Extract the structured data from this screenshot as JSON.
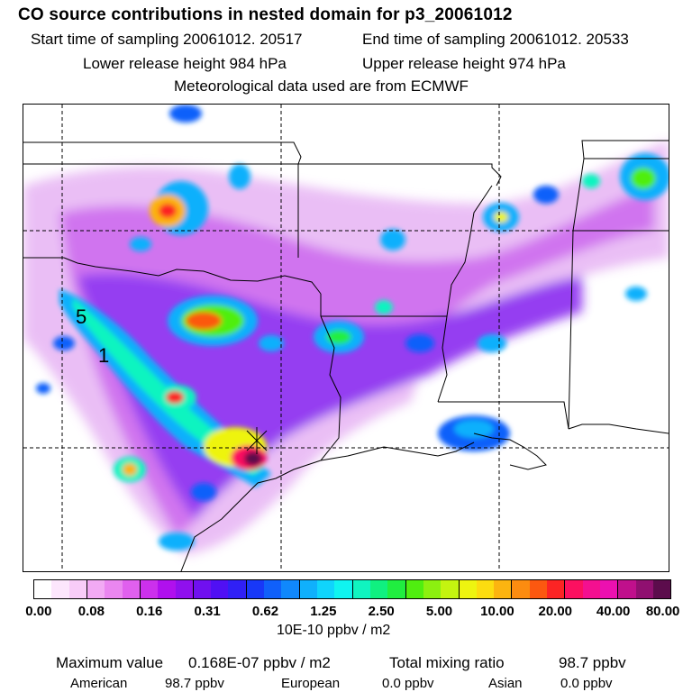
{
  "header": {
    "title": "CO  source contributions in nested domain for p3_20061012",
    "start_label": "Start time of sampling 20061012. 20517",
    "end_label": "End time of sampling 20061012. 20533",
    "lower_label": "Lower release height  984 hPa",
    "upper_label": "Upper release height  974 hPa",
    "met_label": "Meteorological data used are from ECMWF"
  },
  "map": {
    "trajectory_labels": [
      "5",
      "1"
    ]
  },
  "colorbar": {
    "ticks": [
      "0.00",
      "0.08",
      "0.16",
      "0.31",
      "0.62",
      "1.25",
      "2.50",
      "5.00",
      "10.00",
      "20.00",
      "40.00",
      "80.00"
    ],
    "units": "10E-10 ppbv / m2",
    "colors": [
      "#ffffff",
      "#fce6fc",
      "#f8ccf8",
      "#f2aaf4",
      "#ea86f0",
      "#e060ee",
      "#cc30ec",
      "#b010ee",
      "#9010ee",
      "#7010f0",
      "#5010f4",
      "#3020f6",
      "#1838f8",
      "#1060fa",
      "#1088fc",
      "#10b0fc",
      "#10d4fc",
      "#10f4f0",
      "#10f4c0",
      "#10f080",
      "#20ee40",
      "#50ee10",
      "#8cf010",
      "#c4f410",
      "#eef410",
      "#fcdc10",
      "#fcb410",
      "#fc8c10",
      "#fc5810",
      "#fc2424",
      "#fc1060",
      "#f41090",
      "#ec10b0",
      "#c0108c",
      "#901070",
      "#5c0c4c"
    ]
  },
  "stats": {
    "max_label": "Maximum value",
    "max_value": "0.168E-07 ppbv / m2",
    "total_label": "Total mixing ratio",
    "total_value": "98.7 ppbv",
    "contributions": [
      {
        "name": "American",
        "value": "98.7 ppbv"
      },
      {
        "name": "European",
        "value": "0.0 ppbv"
      },
      {
        "name": "Asian",
        "value": "0.0 ppbv"
      }
    ]
  }
}
